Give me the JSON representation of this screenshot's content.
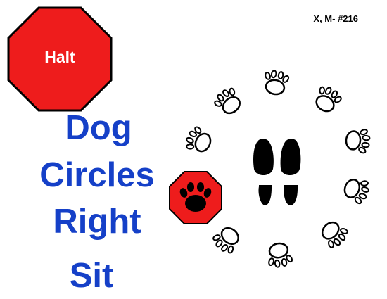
{
  "sign_code": "X, M- #216",
  "halt_sign": {
    "label": "Halt",
    "color": "#ee1c1c",
    "icon": "stop-octagon-icon"
  },
  "title_lines": [
    "Dog",
    "Circles",
    "Right",
    "Sit"
  ],
  "title_color": "#1540c8",
  "paw_stop_sign": {
    "icon": "paw-in-stop-sign-icon",
    "color": "#ee1c1c"
  },
  "diagram": {
    "icons": [
      "handler-footprints-icon",
      "paw-print-icon"
    ],
    "paw_print_count": 10,
    "direction": "right"
  }
}
